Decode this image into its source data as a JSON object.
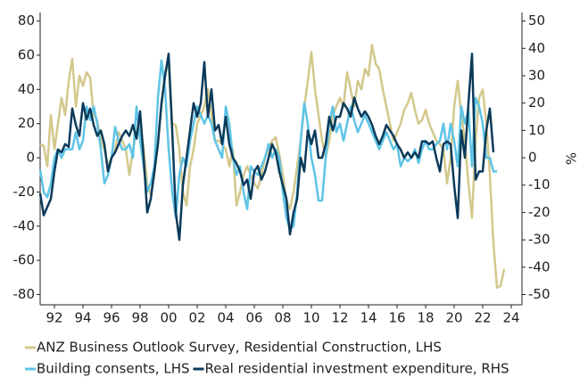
{
  "chart_data": {
    "type": "line",
    "x": [
      1991,
      1991.25,
      1991.5,
      1991.75,
      1992,
      1992.25,
      1992.5,
      1992.75,
      1993,
      1993.25,
      1993.5,
      1993.75,
      1994,
      1994.25,
      1994.5,
      1994.75,
      1995,
      1995.25,
      1995.5,
      1995.75,
      1996,
      1996.25,
      1996.5,
      1996.75,
      1997,
      1997.25,
      1997.5,
      1997.75,
      1998,
      1998.25,
      1998.5,
      1998.75,
      1999,
      1999.25,
      1999.5,
      1999.75,
      2000,
      2000.25,
      2000.5,
      2000.75,
      2001,
      2001.25,
      2001.5,
      2001.75,
      2002,
      2002.25,
      2002.5,
      2002.75,
      2003,
      2003.25,
      2003.5,
      2003.75,
      2004,
      2004.25,
      2004.5,
      2004.75,
      2005,
      2005.25,
      2005.5,
      2005.75,
      2006,
      2006.25,
      2006.5,
      2006.75,
      2007,
      2007.25,
      2007.5,
      2007.75,
      2008,
      2008.25,
      2008.5,
      2008.75,
      2009,
      2009.25,
      2009.5,
      2009.75,
      2010,
      2010.25,
      2010.5,
      2010.75,
      2011,
      2011.25,
      2011.5,
      2011.75,
      2012,
      2012.25,
      2012.5,
      2012.75,
      2013,
      2013.25,
      2013.5,
      2013.75,
      2014,
      2014.25,
      2014.5,
      2014.75,
      2015,
      2015.25,
      2015.5,
      2015.75,
      2016,
      2016.25,
      2016.5,
      2016.75,
      2017,
      2017.25,
      2017.5,
      2017.75,
      2018,
      2018.25,
      2018.5,
      2018.75,
      2019,
      2019.25,
      2019.5,
      2019.75,
      2020,
      2020.25,
      2020.5,
      2020.75,
      2021,
      2021.25,
      2021.5,
      2021.75,
      2022,
      2022.25,
      2022.5,
      2022.75,
      2023,
      2023.25,
      2023.5
    ],
    "series": [
      {
        "name": "ANZ Business Outlook Survey, Residential Construction, LHS",
        "color": "#d3c88c",
        "values": [
          8,
          7,
          -5,
          25,
          5,
          20,
          35,
          25,
          45,
          58,
          30,
          48,
          42,
          50,
          47,
          25,
          22,
          10,
          5,
          -5,
          0,
          5,
          15,
          10,
          5,
          -10,
          5,
          15,
          20,
          5,
          -15,
          -22,
          -10,
          10,
          30,
          50,
          55,
          20,
          19,
          5,
          -20,
          -28,
          -5,
          5,
          20,
          25,
          30,
          40,
          25,
          10,
          10,
          8,
          5,
          -5,
          5,
          -28,
          -20,
          -10,
          -5,
          -10,
          -15,
          -18,
          -10,
          0,
          5,
          10,
          12,
          2,
          -10,
          -25,
          -30,
          -20,
          -5,
          10,
          30,
          45,
          62,
          40,
          25,
          10,
          0,
          10,
          25,
          30,
          35,
          30,
          50,
          40,
          30,
          45,
          40,
          52,
          48,
          66,
          55,
          52,
          40,
          30,
          20,
          10,
          15,
          20,
          28,
          32,
          38,
          28,
          20,
          22,
          28,
          20,
          15,
          10,
          8,
          5,
          -15,
          0,
          30,
          45,
          25,
          10,
          -15,
          -35,
          10,
          35,
          40,
          20,
          -10,
          -50,
          -76,
          -75,
          -65
        ]
      },
      {
        "name": "Building consents, LHS",
        "color": "#5ec4e6",
        "values": [
          -7,
          -20,
          -23,
          -15,
          0,
          5,
          0,
          5,
          5,
          5,
          15,
          5,
          10,
          30,
          22,
          30,
          20,
          5,
          -15,
          -10,
          0,
          18,
          10,
          5,
          5,
          8,
          0,
          30,
          10,
          -5,
          -20,
          -15,
          -5,
          35,
          57,
          40,
          5,
          -20,
          -35,
          -10,
          0,
          -5,
          10,
          20,
          30,
          25,
          20,
          25,
          20,
          10,
          5,
          0,
          30,
          20,
          0,
          -10,
          -5,
          -20,
          -30,
          -5,
          -8,
          -10,
          -5,
          0,
          8,
          0,
          5,
          0,
          -20,
          -35,
          -42,
          -40,
          -20,
          10,
          32,
          20,
          0,
          -10,
          -25,
          -25,
          0,
          20,
          30,
          15,
          20,
          10,
          20,
          30,
          22,
          15,
          20,
          25,
          20,
          15,
          10,
          5,
          10,
          15,
          10,
          5,
          8,
          -5,
          0,
          -2,
          0,
          5,
          -3,
          5,
          10,
          5,
          5,
          8,
          10,
          20,
          5,
          20,
          10,
          -5,
          30,
          20,
          28,
          -5,
          35,
          30,
          20,
          0,
          0,
          -8,
          -8,
          null,
          null
        ]
      },
      {
        "name": "Real residential investment expenditure, RHS",
        "color": "#0b3a5a",
        "axis": "y2",
        "values": [
          -13,
          -21,
          -18,
          -15,
          -5,
          3,
          2,
          5,
          4,
          18,
          12,
          8,
          20,
          14,
          18,
          12,
          8,
          10,
          5,
          -5,
          0,
          2,
          5,
          8,
          10,
          8,
          12,
          7,
          17,
          0,
          -20,
          -15,
          -5,
          5,
          20,
          30,
          38,
          10,
          -20,
          -30,
          -10,
          0,
          10,
          20,
          15,
          20,
          35,
          15,
          25,
          10,
          12,
          5,
          15,
          5,
          0,
          -2,
          -5,
          -10,
          -8,
          -15,
          -5,
          -3,
          -8,
          -5,
          0,
          5,
          2,
          -5,
          -10,
          -15,
          -28,
          -20,
          -15,
          0,
          -5,
          10,
          5,
          10,
          0,
          0,
          5,
          15,
          10,
          15,
          15,
          20,
          18,
          15,
          22,
          18,
          15,
          17,
          15,
          12,
          8,
          5,
          8,
          12,
          10,
          8,
          5,
          3,
          0,
          2,
          0,
          2,
          0,
          6,
          6,
          5,
          6,
          0,
          -5,
          5,
          6,
          5,
          -10,
          -22,
          10,
          0,
          20,
          38,
          -8,
          -5,
          -5,
          10,
          18,
          2,
          null,
          null,
          null
        ]
      }
    ],
    "xlim": [
      1991,
      2024.75
    ],
    "xticks": [
      {
        "value": 1992,
        "label": "92"
      },
      {
        "value": 1994,
        "label": "94"
      },
      {
        "value": 1996,
        "label": "96"
      },
      {
        "value": 1998,
        "label": "98"
      },
      {
        "value": 2000,
        "label": "00"
      },
      {
        "value": 2002,
        "label": "02"
      },
      {
        "value": 2004,
        "label": "04"
      },
      {
        "value": 2006,
        "label": "06"
      },
      {
        "value": 2008,
        "label": "08"
      },
      {
        "value": 2010,
        "label": "10"
      },
      {
        "value": 2012,
        "label": "12"
      },
      {
        "value": 2014,
        "label": "14"
      },
      {
        "value": 2016,
        "label": "16"
      },
      {
        "value": 2018,
        "label": "18"
      },
      {
        "value": 2020,
        "label": "20"
      },
      {
        "value": 2022,
        "label": "22"
      },
      {
        "value": 2024,
        "label": "24"
      }
    ],
    "ylim": [
      -86,
      85
    ],
    "yticks": [
      80,
      60,
      40,
      20,
      0,
      -20,
      -40,
      -60,
      -80
    ],
    "y2lim": [
      -53.75,
      53.125
    ],
    "y2ticks": [
      50,
      40,
      30,
      20,
      10,
      0,
      -10,
      -20,
      -30,
      -40,
      -50
    ],
    "y2_label": "%"
  }
}
